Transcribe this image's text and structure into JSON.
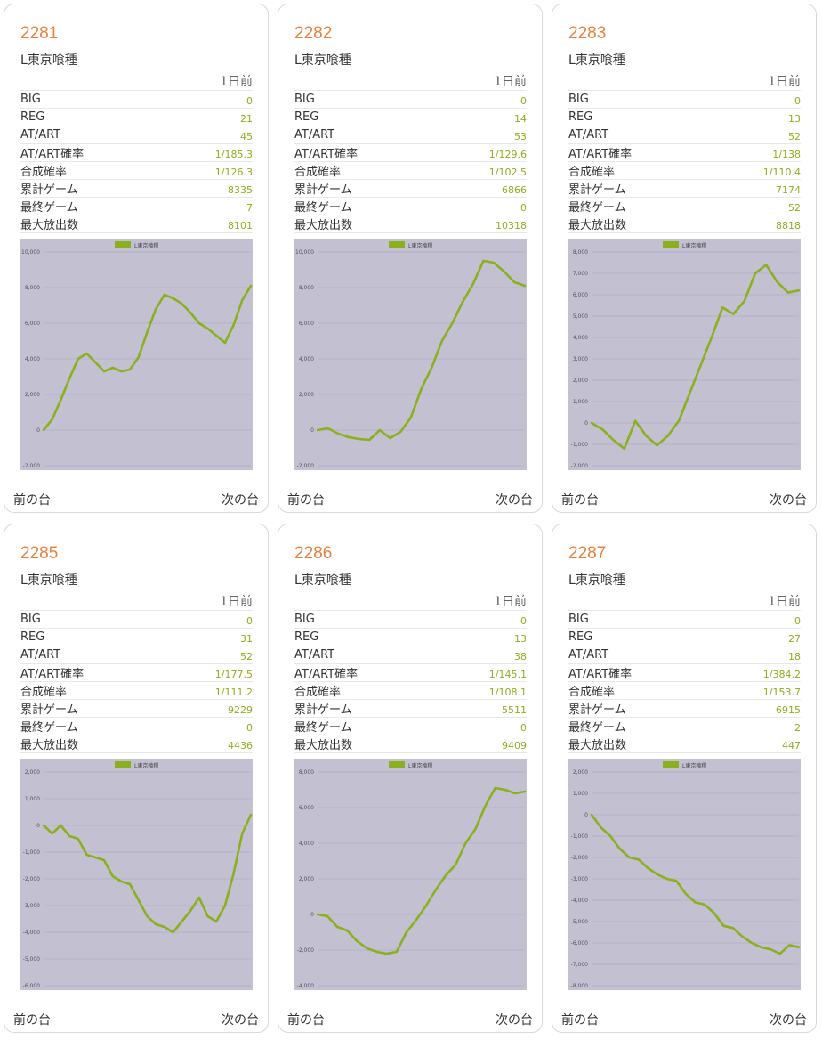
{
  "common": {
    "day_label": "1日前",
    "stat_labels": [
      "BIG",
      "REG",
      "AT/ART",
      "AT/ART確率",
      "合成確率",
      "累計ゲーム",
      "最終ゲーム",
      "最大放出数"
    ],
    "prev_label": "前の台",
    "next_label": "次の台",
    "legend_label": "L東京喰種",
    "plot_bg": "#c3c0d2",
    "line_color": "#8ab01e",
    "accent_color": "#e8813f"
  },
  "machines": [
    {
      "number": "2281",
      "name": "L東京喰種",
      "stats": [
        "0",
        "21",
        "45",
        "1/185.3",
        "1/126.3",
        "8335",
        "7",
        "8101"
      ]
    },
    {
      "number": "2282",
      "name": "L東京喰種",
      "stats": [
        "0",
        "14",
        "53",
        "1/129.6",
        "1/102.5",
        "6866",
        "0",
        "10318"
      ]
    },
    {
      "number": "2283",
      "name": "L東京喰種",
      "stats": [
        "0",
        "13",
        "52",
        "1/138",
        "1/110.4",
        "7174",
        "52",
        "8818"
      ]
    },
    {
      "number": "2285",
      "name": "L東京喰種",
      "stats": [
        "0",
        "31",
        "52",
        "1/177.5",
        "1/111.2",
        "9229",
        "0",
        "4436"
      ]
    },
    {
      "number": "2286",
      "name": "L東京喰種",
      "stats": [
        "0",
        "13",
        "38",
        "1/145.1",
        "1/108.1",
        "5511",
        "0",
        "9409"
      ]
    },
    {
      "number": "2287",
      "name": "L東京喰種",
      "stats": [
        "0",
        "27",
        "18",
        "1/384.2",
        "1/153.7",
        "6915",
        "2",
        "447"
      ]
    }
  ],
  "chart_data": [
    {
      "type": "line",
      "legend": "L東京喰種",
      "ylim": [
        -2000,
        10000
      ],
      "yticks": [
        "-2,000",
        "0",
        "2,000",
        "4,000",
        "6,000",
        "8,000",
        "10,000"
      ],
      "values": [
        0,
        600,
        1700,
        2900,
        4000,
        4300,
        3800,
        3300,
        3500,
        3300,
        3400,
        4100,
        5500,
        6800,
        7600,
        7400,
        7100,
        6600,
        6000,
        5700,
        5300,
        4900,
        5900,
        7300,
        8100
      ]
    },
    {
      "type": "line",
      "legend": "L東京喰種",
      "ylim": [
        -2000,
        10000
      ],
      "yticks": [
        "-2,000",
        "0",
        "2,000",
        "4,000",
        "6,000",
        "8,000",
        "10,000"
      ],
      "values": [
        0,
        100,
        -200,
        -400,
        -500,
        -550,
        0,
        -450,
        -100,
        700,
        2300,
        3500,
        5000,
        6000,
        7200,
        8200,
        9500,
        9400,
        8900,
        8300,
        8100
      ]
    },
    {
      "type": "line",
      "legend": "L東京喰種",
      "ylim": [
        -2000,
        8000
      ],
      "yticks": [
        "-2,000",
        "-1,000",
        "0",
        "1,000",
        "2,000",
        "3,000",
        "4,000",
        "5,000",
        "6,000",
        "7,000",
        "8,000"
      ],
      "values": [
        0,
        -300,
        -800,
        -1200,
        100,
        -600,
        -1050,
        -600,
        100,
        1400,
        2700,
        4000,
        5400,
        5100,
        5700,
        7000,
        7400,
        6600,
        6100,
        6200
      ]
    },
    {
      "type": "line",
      "legend": "L東京喰種",
      "ylim": [
        -6000,
        2000
      ],
      "yticks": [
        "-6,000",
        "-5,000",
        "-4,000",
        "-3,000",
        "-2,000",
        "-1,000",
        "0",
        "1,000",
        "2,000"
      ],
      "values": [
        0,
        -300,
        0,
        -400,
        -500,
        -1100,
        -1200,
        -1300,
        -1900,
        -2100,
        -2200,
        -2800,
        -3400,
        -3700,
        -3800,
        -4000,
        -3600,
        -3200,
        -2700,
        -3400,
        -3600,
        -3000,
        -1800,
        -300,
        400
      ]
    },
    {
      "type": "line",
      "legend": "L東京喰種",
      "ylim": [
        -4000,
        8000
      ],
      "yticks": [
        "-4,000",
        "-2,000",
        "0",
        "2,000",
        "4,000",
        "6,000",
        "8,000"
      ],
      "values": [
        0,
        -100,
        -700,
        -900,
        -1500,
        -1900,
        -2100,
        -2200,
        -2100,
        -1000,
        -300,
        500,
        1400,
        2200,
        2800,
        4000,
        4800,
        6100,
        7100,
        7000,
        6800,
        6900
      ]
    },
    {
      "type": "line",
      "legend": "L東京喰種",
      "ylim": [
        -8000,
        2000
      ],
      "yticks": [
        "-8,000",
        "-7,000",
        "-6,000",
        "-5,000",
        "-4,000",
        "-3,000",
        "-2,000",
        "-1,000",
        "0",
        "1,000",
        "2,000"
      ],
      "values": [
        0,
        -600,
        -1000,
        -1600,
        -2000,
        -2100,
        -2500,
        -2800,
        -3000,
        -3100,
        -3700,
        -4100,
        -4200,
        -4600,
        -5200,
        -5300,
        -5700,
        -6000,
        -6200,
        -6300,
        -6500,
        -6100,
        -6200
      ]
    }
  ]
}
